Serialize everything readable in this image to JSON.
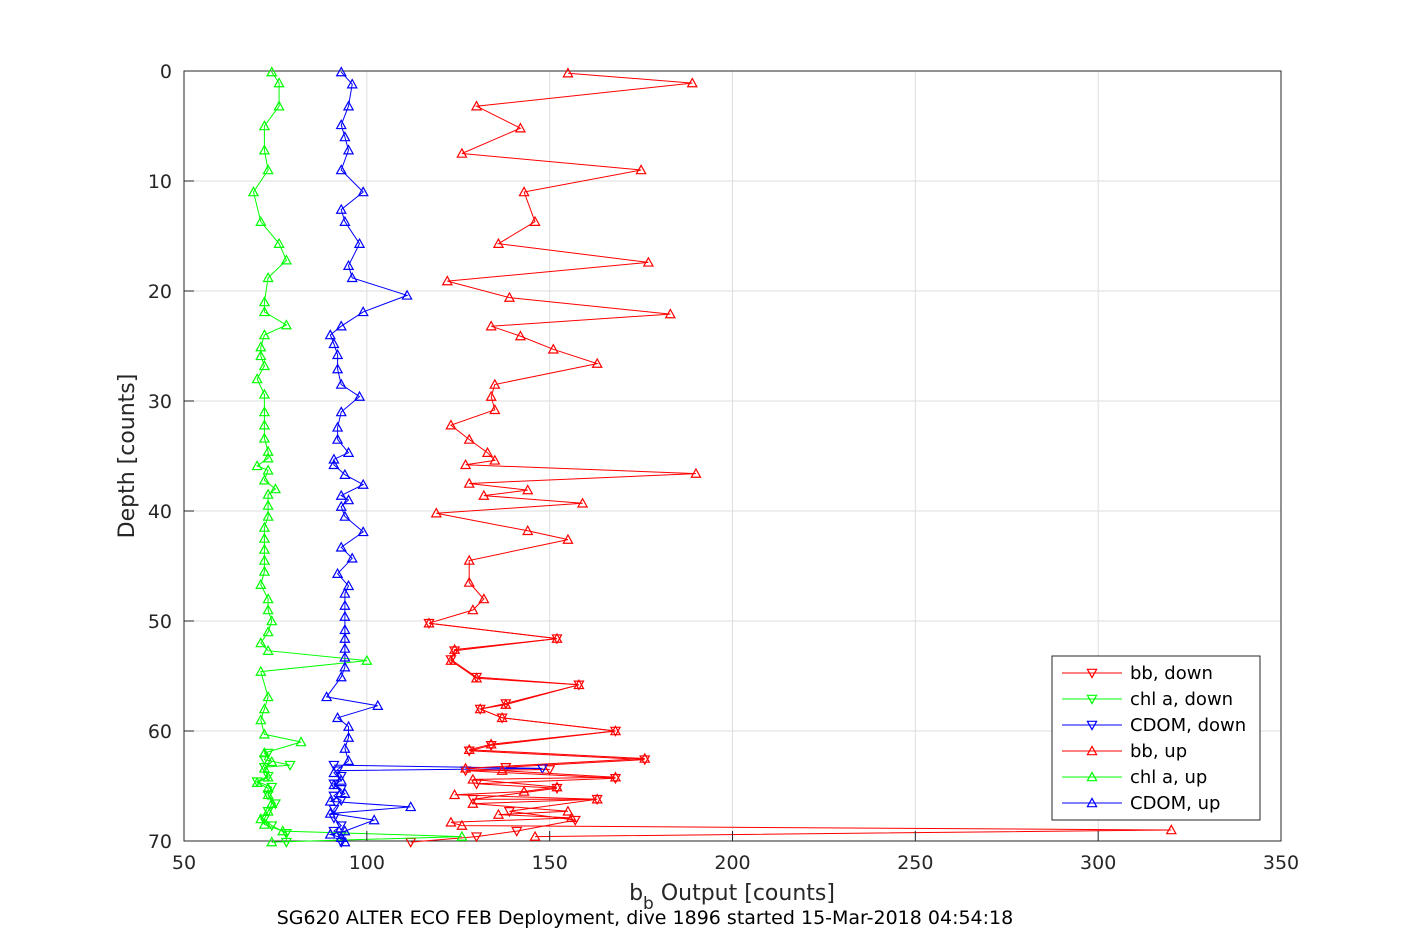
{
  "chart_data": {
    "type": "line",
    "caption": "SG620 ALTER ECO FEB Deployment, dive 1896 started 15-Mar-2018 04:54:18",
    "xlabel_main": "b",
    "xlabel_sub": "b",
    "xlabel_rest": " Output [counts]",
    "ylabel": "Depth [counts]",
    "xlim": [
      50,
      350
    ],
    "ylim": [
      0,
      70
    ],
    "y_reversed": true,
    "grid": true,
    "legend_placement": "bottom-right",
    "x_ticks": [
      "50",
      "100",
      "150",
      "200",
      "250",
      "300",
      "350"
    ],
    "y_ticks": [
      "0",
      "10",
      "20",
      "30",
      "40",
      "50",
      "60",
      "70"
    ],
    "series": [
      {
        "name": "bb, down",
        "color": "#ff0000",
        "marker": "triangle-down",
        "points": [
          [
            112,
            70.1
          ],
          [
            130,
            69.6
          ],
          [
            141,
            69.1
          ],
          [
            157,
            68.1
          ],
          [
            139,
            67.3
          ],
          [
            163,
            66.2
          ],
          [
            129,
            66.2
          ],
          [
            152,
            65.2
          ],
          [
            130,
            64.8
          ],
          [
            168,
            64.3
          ],
          [
            127,
            63.6
          ],
          [
            150,
            63.5
          ],
          [
            138,
            63.3
          ],
          [
            176,
            62.6
          ],
          [
            128,
            61.8
          ],
          [
            134,
            61.3
          ],
          [
            168,
            60.0
          ],
          [
            137,
            58.8
          ],
          [
            131,
            58.0
          ],
          [
            138,
            57.5
          ],
          [
            158,
            55.8
          ],
          [
            130,
            55.1
          ],
          [
            123,
            53.5
          ],
          [
            124,
            52.7
          ],
          [
            152,
            51.6
          ],
          [
            117,
            50.2
          ]
        ]
      },
      {
        "name": "chl a, down",
        "color": "#00ff00",
        "marker": "triangle-down",
        "points": [
          [
            78,
            70.1
          ],
          [
            78,
            69.3
          ],
          [
            74,
            68.6
          ],
          [
            72,
            68.0
          ],
          [
            73,
            67.3
          ],
          [
            75,
            66.6
          ],
          [
            73,
            65.8
          ],
          [
            74,
            65.1
          ],
          [
            70,
            64.6
          ],
          [
            73,
            64.1
          ],
          [
            72,
            63.3
          ],
          [
            79,
            63.1
          ],
          [
            72,
            62.6
          ],
          [
            73,
            62.0
          ]
        ]
      },
      {
        "name": "CDOM, down",
        "color": "#0000ff",
        "marker": "triangle-down",
        "points": [
          [
            93,
            70.1
          ],
          [
            93,
            69.5
          ],
          [
            91,
            69.1
          ],
          [
            93,
            68.6
          ],
          [
            91,
            67.9
          ],
          [
            91,
            67.1
          ],
          [
            93,
            66.3
          ],
          [
            91,
            65.9
          ],
          [
            93,
            65.3
          ],
          [
            91,
            64.8
          ],
          [
            93,
            64.1
          ],
          [
            92,
            63.6
          ],
          [
            148,
            63.4
          ],
          [
            91,
            63.1
          ]
        ]
      },
      {
        "name": "bb, up",
        "color": "#ff0000",
        "marker": "triangle-up",
        "points": [
          [
            146,
            69.6
          ],
          [
            320,
            69.0
          ],
          [
            126,
            68.6
          ],
          [
            123,
            68.3
          ],
          [
            156,
            67.9
          ],
          [
            136,
            67.6
          ],
          [
            155,
            67.3
          ],
          [
            129,
            66.6
          ],
          [
            163,
            66.2
          ],
          [
            124,
            65.8
          ],
          [
            143,
            65.5
          ],
          [
            152,
            65.1
          ],
          [
            129,
            64.4
          ],
          [
            168,
            64.2
          ],
          [
            137,
            63.6
          ],
          [
            127,
            63.4
          ],
          [
            176,
            62.5
          ],
          [
            128,
            61.7
          ],
          [
            134,
            61.2
          ],
          [
            168,
            60.0
          ],
          [
            137,
            58.8
          ],
          [
            131,
            58.0
          ],
          [
            138,
            57.6
          ],
          [
            158,
            55.8
          ],
          [
            130,
            55.2
          ],
          [
            123,
            53.6
          ],
          [
            124,
            52.6
          ],
          [
            152,
            51.6
          ],
          [
            117,
            50.2
          ],
          [
            129,
            49.0
          ],
          [
            132,
            48.0
          ],
          [
            128,
            46.5
          ],
          [
            128,
            44.5
          ],
          [
            155,
            42.6
          ],
          [
            144,
            41.8
          ],
          [
            119,
            40.2
          ],
          [
            159,
            39.3
          ],
          [
            132,
            38.6
          ],
          [
            144,
            38.1
          ],
          [
            128,
            37.5
          ],
          [
            190,
            36.6
          ],
          [
            127,
            35.8
          ],
          [
            135,
            35.4
          ],
          [
            133,
            34.7
          ],
          [
            128,
            33.5
          ],
          [
            123,
            32.2
          ],
          [
            135,
            30.8
          ],
          [
            134,
            29.6
          ],
          [
            135,
            28.5
          ],
          [
            163,
            26.6
          ],
          [
            151,
            25.3
          ],
          [
            142,
            24.1
          ],
          [
            134,
            23.2
          ],
          [
            183,
            22.1
          ],
          [
            139,
            20.6
          ],
          [
            122,
            19.1
          ],
          [
            177,
            17.4
          ],
          [
            136,
            15.7
          ],
          [
            146,
            13.7
          ],
          [
            143,
            11.0
          ],
          [
            175,
            9.0
          ],
          [
            126,
            7.5
          ],
          [
            142,
            5.2
          ],
          [
            130,
            3.2
          ],
          [
            189,
            1.1
          ],
          [
            155,
            0.2
          ]
        ]
      },
      {
        "name": "chl a, up",
        "color": "#00ff00",
        "marker": "triangle-up",
        "points": [
          [
            74,
            70.1
          ],
          [
            126,
            69.6
          ],
          [
            77,
            69.1
          ],
          [
            72,
            68.5
          ],
          [
            71,
            68.0
          ],
          [
            73,
            67.3
          ],
          [
            74,
            66.6
          ],
          [
            73,
            65.8
          ],
          [
            73,
            65.2
          ],
          [
            70,
            64.7
          ],
          [
            73,
            64.2
          ],
          [
            72,
            63.4
          ],
          [
            74,
            62.8
          ],
          [
            72,
            62.0
          ],
          [
            82,
            61.0
          ],
          [
            72,
            60.3
          ],
          [
            71,
            59.0
          ],
          [
            72,
            58.0
          ],
          [
            73,
            56.9
          ],
          [
            71,
            54.6
          ],
          [
            100,
            53.6
          ],
          [
            73,
            52.7
          ],
          [
            71,
            52.0
          ],
          [
            73,
            51.0
          ],
          [
            74,
            50.0
          ],
          [
            73,
            49.0
          ],
          [
            73,
            48.0
          ],
          [
            71,
            46.7
          ],
          [
            72,
            45.5
          ],
          [
            72,
            44.5
          ],
          [
            72,
            43.5
          ],
          [
            72,
            42.5
          ],
          [
            72,
            41.5
          ],
          [
            73,
            40.5
          ],
          [
            73,
            39.5
          ],
          [
            73,
            38.5
          ],
          [
            75,
            38.0
          ],
          [
            72,
            37.2
          ],
          [
            73,
            36.3
          ],
          [
            70,
            35.9
          ],
          [
            73,
            35.2
          ],
          [
            73,
            34.6
          ],
          [
            72,
            33.4
          ],
          [
            72,
            32.2
          ],
          [
            72,
            31.0
          ],
          [
            72,
            29.4
          ],
          [
            70,
            28.0
          ],
          [
            72,
            26.8
          ],
          [
            71,
            25.9
          ],
          [
            71,
            25.1
          ],
          [
            72,
            24.0
          ],
          [
            78,
            23.1
          ],
          [
            72,
            21.9
          ],
          [
            72,
            21.0
          ],
          [
            73,
            18.8
          ],
          [
            78,
            17.2
          ],
          [
            76,
            15.7
          ],
          [
            71,
            13.7
          ],
          [
            69,
            11.0
          ],
          [
            73,
            9.0
          ],
          [
            72,
            7.2
          ],
          [
            72,
            5.0
          ],
          [
            76,
            3.2
          ],
          [
            76,
            1.1
          ],
          [
            74,
            0.1
          ]
        ]
      },
      {
        "name": "CDOM, up",
        "color": "#0000ff",
        "marker": "triangle-up",
        "points": [
          [
            94,
            70.1
          ],
          [
            93,
            69.7
          ],
          [
            90,
            69.4
          ],
          [
            94,
            69.1
          ],
          [
            102,
            68.1
          ],
          [
            90,
            67.5
          ],
          [
            112,
            66.9
          ],
          [
            90,
            66.4
          ],
          [
            94,
            65.7
          ],
          [
            91,
            64.9
          ],
          [
            93,
            64.5
          ],
          [
            91,
            63.8
          ],
          [
            95,
            62.7
          ],
          [
            94,
            61.6
          ],
          [
            95,
            60.6
          ],
          [
            95,
            59.6
          ],
          [
            92,
            58.8
          ],
          [
            103,
            57.7
          ],
          [
            89,
            56.9
          ],
          [
            93,
            55.1
          ],
          [
            94,
            54.2
          ],
          [
            94,
            53.3
          ],
          [
            94,
            52.5
          ],
          [
            94,
            51.6
          ],
          [
            94,
            50.8
          ],
          [
            94,
            49.6
          ],
          [
            94,
            48.6
          ],
          [
            94,
            47.5
          ],
          [
            95,
            46.8
          ],
          [
            92,
            45.7
          ],
          [
            96,
            44.3
          ],
          [
            93,
            43.3
          ],
          [
            99,
            41.9
          ],
          [
            94,
            40.5
          ],
          [
            93,
            39.6
          ],
          [
            95,
            39.0
          ],
          [
            93,
            38.6
          ],
          [
            99,
            37.6
          ],
          [
            94,
            36.7
          ],
          [
            91,
            35.8
          ],
          [
            91,
            35.3
          ],
          [
            95,
            34.7
          ],
          [
            92,
            33.5
          ],
          [
            92,
            32.4
          ],
          [
            93,
            31.0
          ],
          [
            98,
            29.6
          ],
          [
            93,
            28.5
          ],
          [
            92,
            27.1
          ],
          [
            92,
            25.8
          ],
          [
            91,
            24.8
          ],
          [
            90,
            24.0
          ],
          [
            93,
            23.2
          ],
          [
            99,
            21.9
          ],
          [
            111,
            20.4
          ],
          [
            96,
            18.8
          ],
          [
            95,
            17.7
          ],
          [
            98,
            15.7
          ],
          [
            94,
            13.7
          ],
          [
            93,
            12.6
          ],
          [
            99,
            11.0
          ],
          [
            93,
            9.0
          ],
          [
            95,
            7.2
          ],
          [
            94,
            6.0
          ],
          [
            93,
            4.9
          ],
          [
            95,
            3.2
          ],
          [
            96,
            1.2
          ],
          [
            93,
            0.1
          ]
        ]
      }
    ]
  }
}
